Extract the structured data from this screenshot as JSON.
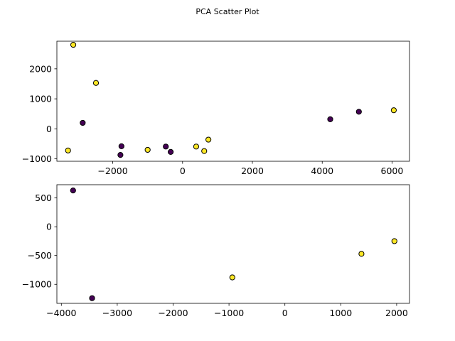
{
  "chart_data": {
    "title": "PCA Scatter Plot",
    "type": "scatter",
    "colors": {
      "class_0": "#440154",
      "class_1": "#fde725",
      "edge": "#000000"
    },
    "panels": [
      {
        "type": "scatter",
        "xlim": [
          -3600,
          6500
        ],
        "ylim": [
          -1080,
          2920
        ],
        "xticks": [
          -2000,
          0,
          2000,
          4000,
          6000
        ],
        "yticks": [
          -1000,
          0,
          1000,
          2000
        ],
        "xtick_labels": [
          "−2000",
          "0",
          "2000",
          "4000",
          "6000"
        ],
        "ytick_labels": [
          "−1000",
          "0",
          "1000",
          "2000"
        ],
        "points": [
          {
            "x": -3280,
            "y": -720,
            "class": 1
          },
          {
            "x": -3130,
            "y": 2800,
            "class": 1
          },
          {
            "x": -2480,
            "y": 1530,
            "class": 1
          },
          {
            "x": -2860,
            "y": 200,
            "class": 0
          },
          {
            "x": -1750,
            "y": -580,
            "class": 0
          },
          {
            "x": -1780,
            "y": -870,
            "class": 0
          },
          {
            "x": -1000,
            "y": -700,
            "class": 1
          },
          {
            "x": -480,
            "y": -590,
            "class": 0
          },
          {
            "x": -340,
            "y": -770,
            "class": 0
          },
          {
            "x": 390,
            "y": -590,
            "class": 1
          },
          {
            "x": 620,
            "y": -740,
            "class": 1
          },
          {
            "x": 740,
            "y": -360,
            "class": 1
          },
          {
            "x": 4230,
            "y": 320,
            "class": 0
          },
          {
            "x": 5050,
            "y": 570,
            "class": 0
          },
          {
            "x": 6050,
            "y": 620,
            "class": 1
          }
        ]
      },
      {
        "type": "scatter",
        "xlim": [
          -4080,
          2230
        ],
        "ylim": [
          -1330,
          730
        ],
        "xticks": [
          -4000,
          -3000,
          -2000,
          -1000,
          0,
          1000,
          2000
        ],
        "yticks": [
          -1000,
          -500,
          0,
          500
        ],
        "xtick_labels": [
          "−4000",
          "−3000",
          "−2000",
          "−1000",
          "0",
          "1000",
          "2000"
        ],
        "ytick_labels": [
          "−1000",
          "−500",
          "0",
          "500"
        ],
        "points": [
          {
            "x": -3790,
            "y": 630,
            "class": 0
          },
          {
            "x": -3450,
            "y": -1240,
            "class": 0
          },
          {
            "x": -940,
            "y": -880,
            "class": 1
          },
          {
            "x": 1370,
            "y": -470,
            "class": 1
          },
          {
            "x": 1960,
            "y": -250,
            "class": 1
          }
        ]
      }
    ]
  }
}
